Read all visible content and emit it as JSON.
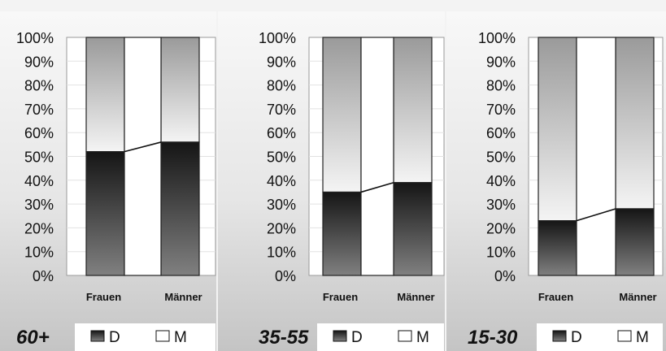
{
  "chart_data": [
    {
      "type": "bar",
      "stacked": true,
      "percent": true,
      "title": "60+",
      "categories": [
        "Frauen",
        "Männer"
      ],
      "series": [
        {
          "name": "D",
          "values": [
            52,
            56
          ]
        },
        {
          "name": "M",
          "values": [
            48,
            44
          ]
        }
      ],
      "ylim": [
        0,
        100
      ],
      "yticks": [
        "0%",
        "10%",
        "20%",
        "30%",
        "40%",
        "50%",
        "60%",
        "70%",
        "80%",
        "90%",
        "100%"
      ],
      "grid": true,
      "legend": "bottom"
    },
    {
      "type": "bar",
      "stacked": true,
      "percent": true,
      "title": "35-55",
      "categories": [
        "Frauen",
        "Männer"
      ],
      "series": [
        {
          "name": "D",
          "values": [
            35,
            39
          ]
        },
        {
          "name": "M",
          "values": [
            65,
            61
          ]
        }
      ],
      "ylim": [
        0,
        100
      ],
      "yticks": [
        "0%",
        "10%",
        "20%",
        "30%",
        "40%",
        "50%",
        "60%",
        "70%",
        "80%",
        "90%",
        "100%"
      ],
      "grid": true,
      "legend": "bottom"
    },
    {
      "type": "bar",
      "stacked": true,
      "percent": true,
      "title": "15-30",
      "categories": [
        "Frauen",
        "Männer"
      ],
      "series": [
        {
          "name": "D",
          "values": [
            23,
            28
          ]
        },
        {
          "name": "M",
          "values": [
            77,
            72
          ]
        }
      ],
      "ylim": [
        0,
        100
      ],
      "yticks": [
        "0%",
        "10%",
        "20%",
        "30%",
        "40%",
        "50%",
        "60%",
        "70%",
        "80%",
        "90%",
        "100%"
      ],
      "grid": true,
      "legend": "bottom"
    }
  ],
  "colors": {
    "D_dark": "#1a1a1a",
    "D_light": "#7d7d7d",
    "M": "#ffffff",
    "plot_bg": "#ffffff",
    "grid": "#e2e2e2",
    "panel_bg_light": "#f7f7f7",
    "panel_bg_dark": "#c6c6c6"
  }
}
